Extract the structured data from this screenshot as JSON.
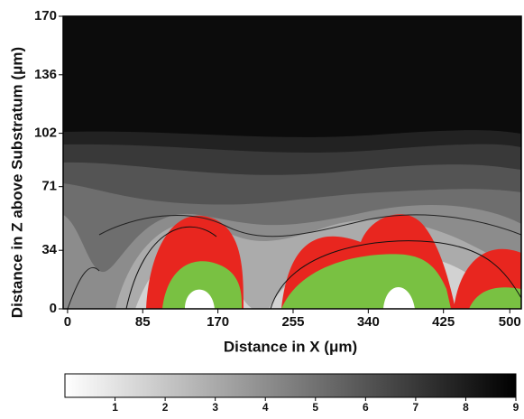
{
  "chart_data": {
    "type": "contour",
    "x_label": "Distance in X (μm)",
    "y_label": "Distance in Z above Substratum (μm)",
    "xlim": [
      -5,
      513
    ],
    "xticks": [
      0,
      85,
      170,
      255,
      340,
      425,
      500
    ],
    "ylim": [
      0,
      170
    ],
    "yticks": [
      0,
      34,
      71,
      102,
      136,
      170
    ],
    "clim": [
      0,
      9
    ],
    "cticks": [
      1,
      2,
      3,
      4,
      5,
      6,
      7,
      8,
      9
    ],
    "colormap": [
      "#ffffff",
      "#000000"
    ]
  }
}
